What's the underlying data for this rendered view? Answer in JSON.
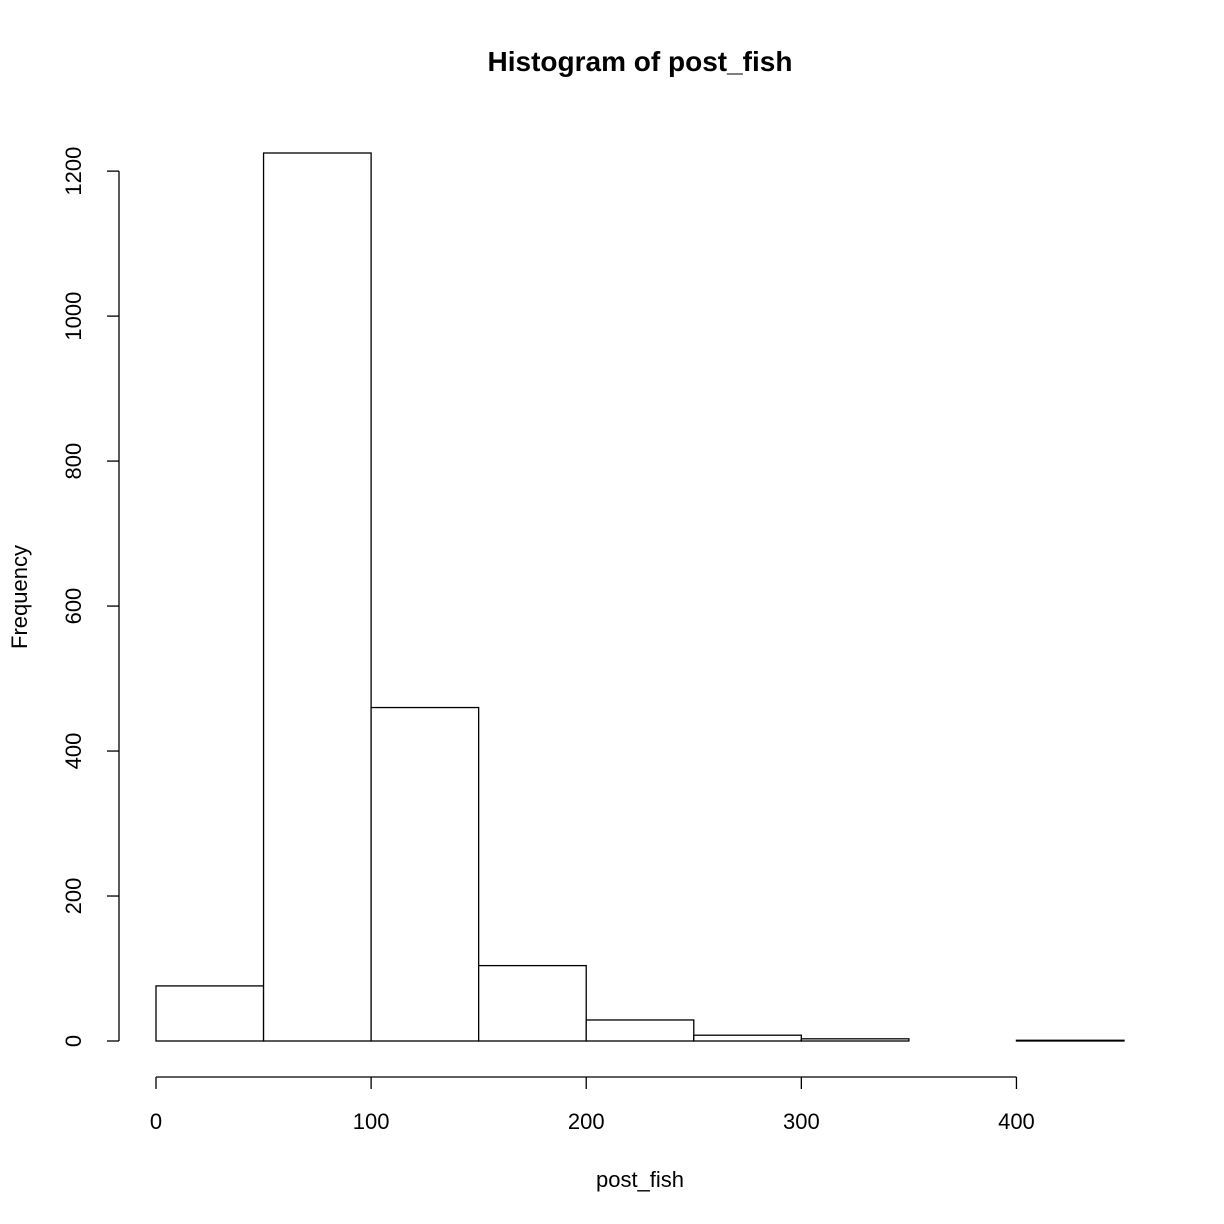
{
  "chart_data": {
    "type": "bar",
    "title": "Histogram of post_fish",
    "xlabel": "post_fish",
    "ylabel": "Frequency",
    "bins": [
      {
        "start": 0,
        "end": 50,
        "count": 76
      },
      {
        "start": 50,
        "end": 100,
        "count": 1225
      },
      {
        "start": 100,
        "end": 150,
        "count": 460
      },
      {
        "start": 150,
        "end": 200,
        "count": 104
      },
      {
        "start": 200,
        "end": 250,
        "count": 29
      },
      {
        "start": 250,
        "end": 300,
        "count": 8
      },
      {
        "start": 300,
        "end": 350,
        "count": 3
      },
      {
        "start": 350,
        "end": 400,
        "count": 0
      },
      {
        "start": 400,
        "end": 450,
        "count": 1
      }
    ],
    "xlim": [
      0,
      450
    ],
    "ylim": [
      0,
      1225
    ],
    "x_ticks": [
      0,
      100,
      200,
      300,
      400
    ],
    "x_tick_labels": [
      "0",
      "100",
      "200",
      "300",
      "400"
    ],
    "y_ticks": [
      0,
      200,
      400,
      600,
      800,
      1000,
      1200
    ],
    "y_tick_labels": [
      "0",
      "200",
      "400",
      "600",
      "800",
      "1000",
      "1200"
    ],
    "grid": false,
    "bar_fill": "#ffffff",
    "stroke": "#000000"
  }
}
